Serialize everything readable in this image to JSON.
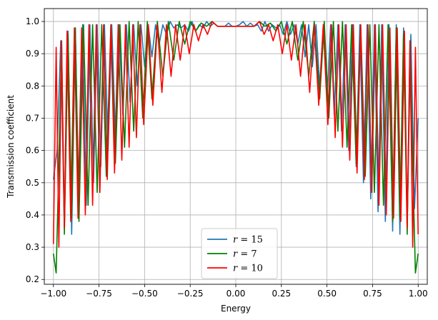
{
  "chart_data": {
    "type": "line",
    "xlabel": "Energy",
    "ylabel": "Transmission coefficient",
    "xlim": [
      -1.05,
      1.05
    ],
    "ylim": [
      0.185,
      1.04
    ],
    "xticks": [
      -1.0,
      -0.75,
      -0.5,
      -0.25,
      0.0,
      0.25,
      0.5,
      0.75,
      1.0
    ],
    "xtick_labels": [
      "−1.00",
      "−0.75",
      "−0.50",
      "−0.25",
      "0.00",
      "0.25",
      "0.50",
      "0.75",
      "1.00"
    ],
    "yticks": [
      0.2,
      0.3,
      0.4,
      0.5,
      0.6,
      0.7,
      0.8,
      0.9,
      1.0
    ],
    "ytick_labels": [
      "0.2",
      "0.3",
      "0.4",
      "0.5",
      "0.6",
      "0.7",
      "0.8",
      "0.9",
      "1.0"
    ],
    "grid": true,
    "legend_position": "bottom-center",
    "series": [
      {
        "name": "r = 15",
        "legend_var": "r",
        "legend_eq": " = 15",
        "color": "#1f77b4",
        "x": [
          -1.0,
          -0.98,
          -0.96,
          -0.94,
          -0.92,
          -0.9,
          -0.88,
          -0.86,
          -0.84,
          -0.82,
          -0.8,
          -0.78,
          -0.76,
          -0.74,
          -0.72,
          -0.7,
          -0.68,
          -0.66,
          -0.64,
          -0.62,
          -0.6,
          -0.58,
          -0.56,
          -0.54,
          -0.52,
          -0.5,
          -0.48,
          -0.46,
          -0.44,
          -0.42,
          -0.4,
          -0.38,
          -0.36,
          -0.34,
          -0.32,
          -0.3,
          -0.28,
          -0.26,
          -0.24,
          -0.22,
          -0.2,
          -0.18,
          -0.16,
          -0.14,
          -0.12,
          -0.1,
          -0.08,
          -0.06,
          -0.04,
          -0.02,
          0.0,
          0.02,
          0.04,
          0.06,
          0.08,
          0.1,
          0.12,
          0.14,
          0.16,
          0.18,
          0.2,
          0.22,
          0.24,
          0.26,
          0.28,
          0.3,
          0.32,
          0.34,
          0.36,
          0.38,
          0.4,
          0.42,
          0.44,
          0.46,
          0.48,
          0.5,
          0.52,
          0.54,
          0.56,
          0.58,
          0.6,
          0.62,
          0.64,
          0.66,
          0.68,
          0.7,
          0.72,
          0.74,
          0.76,
          0.78,
          0.8,
          0.82,
          0.84,
          0.86,
          0.88,
          0.9,
          0.92,
          0.94,
          0.96,
          0.98,
          1.0
        ],
        "values": [
          0.51,
          0.6,
          0.94,
          0.36,
          0.97,
          0.34,
          0.98,
          0.41,
          0.99,
          0.43,
          0.99,
          0.5,
          0.99,
          0.55,
          0.99,
          0.6,
          0.99,
          0.65,
          0.99,
          0.71,
          0.99,
          0.75,
          0.99,
          0.8,
          0.99,
          0.86,
          0.99,
          0.89,
          0.99,
          0.93,
          0.99,
          0.96,
          1.0,
          0.98,
          0.99,
          0.98,
          0.99,
          0.97,
          1.0,
          0.97,
          0.99,
          0.98,
          1.0,
          0.985,
          0.995,
          0.985,
          0.985,
          0.985,
          0.995,
          0.985,
          0.985,
          0.99,
          1.0,
          0.985,
          0.995,
          0.985,
          0.99,
          0.97,
          1.0,
          0.97,
          0.99,
          0.98,
          0.99,
          0.96,
          1.0,
          0.96,
          0.99,
          0.93,
          0.99,
          0.89,
          0.99,
          0.86,
          0.99,
          0.8,
          0.99,
          0.75,
          0.99,
          0.71,
          0.99,
          0.66,
          0.99,
          0.6,
          0.99,
          0.55,
          0.99,
          0.5,
          0.99,
          0.45,
          0.99,
          0.41,
          0.99,
          0.38,
          0.99,
          0.35,
          0.99,
          0.34,
          0.98,
          0.37,
          0.96,
          0.42,
          0.7
        ]
      },
      {
        "name": "r = 7",
        "legend_var": "r",
        "legend_eq": " = 7",
        "color": "#008000",
        "x": [
          -1.0,
          -0.985,
          -0.97,
          -0.955,
          -0.94,
          -0.92,
          -0.9,
          -0.88,
          -0.86,
          -0.835,
          -0.81,
          -0.785,
          -0.76,
          -0.735,
          -0.71,
          -0.685,
          -0.66,
          -0.635,
          -0.61,
          -0.585,
          -0.56,
          -0.535,
          -0.51,
          -0.485,
          -0.46,
          -0.43,
          -0.4,
          -0.37,
          -0.34,
          -0.31,
          -0.28,
          -0.25,
          -0.22,
          -0.19,
          -0.16,
          -0.13,
          -0.1,
          -0.07,
          -0.04,
          0.0,
          0.04,
          0.07,
          0.1,
          0.13,
          0.16,
          0.19,
          0.22,
          0.25,
          0.28,
          0.31,
          0.34,
          0.37,
          0.4,
          0.43,
          0.46,
          0.485,
          0.51,
          0.535,
          0.56,
          0.585,
          0.61,
          0.635,
          0.66,
          0.685,
          0.71,
          0.735,
          0.76,
          0.785,
          0.81,
          0.835,
          0.86,
          0.88,
          0.9,
          0.92,
          0.94,
          0.955,
          0.97,
          0.985,
          1.0
        ],
        "values": [
          0.28,
          0.22,
          0.56,
          0.94,
          0.34,
          0.96,
          0.39,
          0.98,
          0.38,
          0.99,
          0.43,
          0.99,
          0.47,
          0.99,
          0.52,
          0.99,
          0.56,
          0.99,
          0.61,
          1.0,
          0.66,
          1.0,
          0.7,
          1.0,
          0.76,
          1.0,
          0.83,
          1.0,
          0.88,
          1.0,
          0.93,
          1.0,
          0.97,
          0.995,
          0.985,
          1.0,
          0.985,
          0.985,
          0.985,
          0.985,
          0.985,
          0.985,
          0.985,
          1.0,
          0.985,
          0.995,
          0.97,
          1.0,
          0.93,
          1.0,
          0.88,
          1.0,
          0.83,
          1.0,
          0.76,
          1.0,
          0.7,
          1.0,
          0.66,
          1.0,
          0.61,
          0.99,
          0.56,
          0.99,
          0.52,
          0.99,
          0.47,
          0.99,
          0.43,
          0.99,
          0.38,
          0.98,
          0.39,
          0.96,
          0.34,
          0.94,
          0.56,
          0.22,
          0.28
        ]
      },
      {
        "name": "r = 10",
        "legend_var": "r",
        "legend_eq": " = 10",
        "color": "#ff0000",
        "x": [
          -1.0,
          -0.985,
          -0.97,
          -0.955,
          -0.94,
          -0.925,
          -0.905,
          -0.885,
          -0.865,
          -0.845,
          -0.825,
          -0.805,
          -0.785,
          -0.765,
          -0.745,
          -0.725,
          -0.705,
          -0.685,
          -0.665,
          -0.645,
          -0.625,
          -0.605,
          -0.585,
          -0.565,
          -0.545,
          -0.525,
          -0.505,
          -0.48,
          -0.455,
          -0.43,
          -0.405,
          -0.38,
          -0.355,
          -0.33,
          -0.305,
          -0.28,
          -0.255,
          -0.23,
          -0.205,
          -0.18,
          -0.155,
          -0.13,
          -0.1,
          -0.06,
          0.0,
          0.06,
          0.1,
          0.13,
          0.155,
          0.18,
          0.205,
          0.23,
          0.255,
          0.28,
          0.305,
          0.33,
          0.355,
          0.38,
          0.405,
          0.43,
          0.455,
          0.48,
          0.505,
          0.525,
          0.545,
          0.565,
          0.585,
          0.605,
          0.625,
          0.645,
          0.665,
          0.685,
          0.705,
          0.725,
          0.745,
          0.765,
          0.785,
          0.805,
          0.825,
          0.845,
          0.865,
          0.885,
          0.905,
          0.925,
          0.94,
          0.955,
          0.97,
          0.985,
          1.0
        ],
        "values": [
          0.31,
          0.92,
          0.3,
          0.94,
          0.36,
          0.97,
          0.38,
          0.98,
          0.39,
          0.98,
          0.4,
          0.99,
          0.43,
          0.99,
          0.47,
          0.99,
          0.51,
          0.99,
          0.53,
          0.99,
          0.57,
          0.99,
          0.61,
          0.99,
          0.64,
          0.99,
          0.68,
          0.99,
          0.74,
          0.99,
          0.78,
          0.99,
          0.83,
          0.99,
          0.88,
          0.99,
          0.9,
          0.99,
          0.94,
          0.99,
          0.96,
          1.0,
          0.985,
          0.985,
          0.985,
          0.985,
          0.985,
          1.0,
          0.96,
          0.99,
          0.94,
          0.99,
          0.9,
          0.99,
          0.88,
          0.99,
          0.83,
          0.99,
          0.78,
          0.99,
          0.74,
          0.99,
          0.68,
          0.99,
          0.64,
          0.99,
          0.61,
          0.99,
          0.57,
          0.99,
          0.53,
          0.99,
          0.51,
          0.99,
          0.47,
          0.99,
          0.43,
          0.99,
          0.4,
          0.98,
          0.39,
          0.98,
          0.38,
          0.97,
          0.36,
          0.94,
          0.3,
          0.92,
          0.34
        ]
      }
    ]
  }
}
